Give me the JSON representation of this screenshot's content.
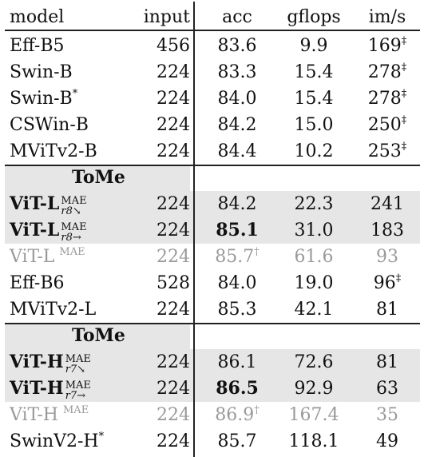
{
  "header": {
    "model": "model",
    "input": "input",
    "acc": "acc",
    "gflops": "gflops",
    "ims": "im/s"
  },
  "group1": [
    {
      "model": "Eff-B5",
      "input": "456",
      "acc": "83.6",
      "gflops": "9.9",
      "ims": "169",
      "ims_mark": "‡"
    },
    {
      "model": "Swin-B",
      "input": "224",
      "acc": "83.3",
      "gflops": "15.4",
      "ims": "278",
      "ims_mark": "‡"
    },
    {
      "model": "Swin-B",
      "model_mark": "*",
      "input": "224",
      "acc": "84.0",
      "gflops": "15.4",
      "ims": "278",
      "ims_mark": "‡"
    },
    {
      "model": "CSWin-B",
      "input": "224",
      "acc": "84.2",
      "gflops": "15.0",
      "ims": "250",
      "ims_mark": "‡"
    },
    {
      "model": "MViTv2-B",
      "input": "224",
      "acc": "84.4",
      "gflops": "10.2",
      "ims": "253",
      "ims_mark": "‡"
    }
  ],
  "tome_label": "ToMe",
  "tome1": [
    {
      "model": "ViT-L",
      "sup": "MAE",
      "sub": "r8↘",
      "input": "224",
      "acc": "84.2",
      "gflops": "22.3",
      "ims": "241"
    },
    {
      "model": "ViT-L",
      "sup": "MAE",
      "sub": "r8→",
      "input": "224",
      "acc": "85.1",
      "gflops": "31.0",
      "ims": "183"
    }
  ],
  "mid": [
    {
      "model": "ViT-L",
      "sup": "MAE",
      "input": "224",
      "acc": "85.7",
      "acc_mark": "†",
      "gflops": "61.6",
      "ims": "93",
      "grey": true
    },
    {
      "model": "Eff-B6",
      "input": "528",
      "acc": "84.0",
      "gflops": "19.0",
      "ims": "96",
      "ims_mark": "‡"
    },
    {
      "model": "MViTv2-L",
      "input": "224",
      "acc": "85.3",
      "gflops": "42.1",
      "ims": "81"
    }
  ],
  "tome2": [
    {
      "model": "ViT-H",
      "sup": "MAE",
      "sub": "r7↘",
      "input": "224",
      "acc": "86.1",
      "gflops": "72.6",
      "ims": "81"
    },
    {
      "model": "ViT-H",
      "sup": "MAE",
      "sub": "r7→",
      "input": "224",
      "acc": "86.5",
      "gflops": "92.9",
      "ims": "63"
    }
  ],
  "tail": [
    {
      "model": "ViT-H",
      "sup": "MAE",
      "input": "224",
      "acc": "86.9",
      "acc_mark": "†",
      "gflops": "167.4",
      "ims": "35",
      "grey": true
    },
    {
      "model": "SwinV2-H",
      "model_mark": "*",
      "input": "224",
      "acc": "85.7",
      "gflops": "118.1",
      "ims": "49"
    }
  ]
}
